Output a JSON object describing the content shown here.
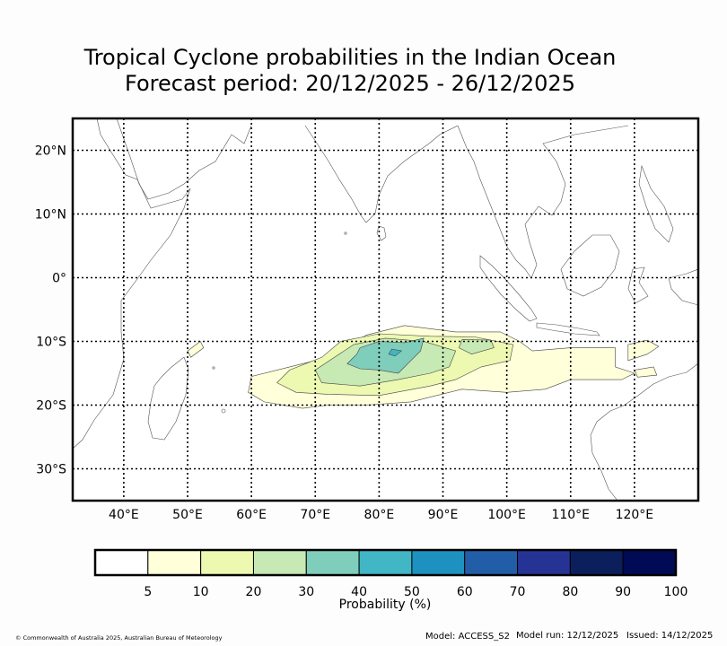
{
  "title": {
    "line1": "Tropical Cyclone probabilities in the Indian Ocean",
    "line2": "Forecast period: 20/12/2025 - 26/12/2025"
  },
  "map": {
    "lon_range": [
      32,
      130
    ],
    "lat_range": [
      -35,
      25
    ],
    "lat_ticks": [
      {
        "value": 20,
        "label": "20°N"
      },
      {
        "value": 10,
        "label": "10°N"
      },
      {
        "value": 0,
        "label": "0°"
      },
      {
        "value": -10,
        "label": "10°S"
      },
      {
        "value": -20,
        "label": "20°S"
      },
      {
        "value": -30,
        "label": "30°S"
      }
    ],
    "lon_ticks": [
      {
        "value": 40,
        "label": "40°E"
      },
      {
        "value": 50,
        "label": "50°E"
      },
      {
        "value": 60,
        "label": "60°E"
      },
      {
        "value": 70,
        "label": "70°E"
      },
      {
        "value": 80,
        "label": "80°E"
      },
      {
        "value": 90,
        "label": "90°E"
      },
      {
        "value": 100,
        "label": "100°E"
      },
      {
        "value": 110,
        "label": "110°E"
      },
      {
        "value": 120,
        "label": "120°E"
      }
    ],
    "probability_regions": [
      {
        "level": 5,
        "color": "#ffffd9",
        "points": [
          [
            78,
            -9
          ],
          [
            84,
            -7.5
          ],
          [
            92,
            -8.5
          ],
          [
            99,
            -8.5
          ],
          [
            102,
            -10
          ],
          [
            104,
            -11.5
          ],
          [
            110,
            -11
          ],
          [
            117,
            -11
          ],
          [
            117,
            -14
          ],
          [
            120,
            -15
          ],
          [
            118,
            -16
          ],
          [
            110,
            -16
          ],
          [
            106,
            -17.5
          ],
          [
            100,
            -18
          ],
          [
            93,
            -17.5
          ],
          [
            85,
            -19.5
          ],
          [
            78,
            -20
          ],
          [
            72,
            -20
          ],
          [
            68,
            -20.5
          ],
          [
            62,
            -19.5
          ],
          [
            59.5,
            -18
          ],
          [
            60,
            -15.5
          ],
          [
            66,
            -14
          ],
          [
            72,
            -12.5
          ]
        ]
      },
      {
        "level": 5,
        "color": "#ffffd9",
        "points": [
          [
            119,
            -10.5
          ],
          [
            122,
            -9.8
          ],
          [
            123.8,
            -10.8
          ],
          [
            122,
            -12
          ],
          [
            119,
            -13
          ]
        ]
      },
      {
        "level": 5,
        "color": "#ffffd9",
        "points": [
          [
            120,
            -14.5
          ],
          [
            123,
            -14
          ],
          [
            123.5,
            -15.3
          ],
          [
            120.5,
            -15.6
          ]
        ]
      },
      {
        "level": 5,
        "color": "#ffffd9",
        "points": [
          [
            50,
            -11.5
          ],
          [
            52,
            -10
          ],
          [
            52.5,
            -11
          ],
          [
            50.5,
            -12.5
          ]
        ]
      },
      {
        "level": 10,
        "color": "#edf8b1",
        "points": [
          [
            74,
            -10
          ],
          [
            80,
            -8.8
          ],
          [
            88,
            -9.2
          ],
          [
            95,
            -9.3
          ],
          [
            101,
            -10.5
          ],
          [
            100.5,
            -13
          ],
          [
            96,
            -14
          ],
          [
            92,
            -16
          ],
          [
            88,
            -17
          ],
          [
            80,
            -18.5
          ],
          [
            72,
            -18.3
          ],
          [
            67,
            -18
          ],
          [
            64,
            -16.5
          ],
          [
            66,
            -14.5
          ],
          [
            71,
            -12.5
          ]
        ]
      },
      {
        "level": 20,
        "color": "#c7e9b4",
        "points": [
          [
            76,
            -10.5
          ],
          [
            81,
            -9.5
          ],
          [
            87,
            -10
          ],
          [
            92,
            -11.5
          ],
          [
            91,
            -14
          ],
          [
            88,
            -15
          ],
          [
            83,
            -16
          ],
          [
            77,
            -17
          ],
          [
            71,
            -16.5
          ],
          [
            70,
            -14.5
          ],
          [
            73,
            -12.5
          ]
        ]
      },
      {
        "level": 20,
        "color": "#c7e9b4",
        "points": [
          [
            93,
            -9.7
          ],
          [
            97.5,
            -9.8
          ],
          [
            98,
            -11
          ],
          [
            94.5,
            -12
          ],
          [
            92.5,
            -11
          ]
        ]
      },
      {
        "level": 30,
        "color": "#7fcdbb",
        "points": [
          [
            77,
            -11
          ],
          [
            80,
            -10
          ],
          [
            84,
            -10.2
          ],
          [
            87,
            -9.5
          ],
          [
            86.5,
            -11.5
          ],
          [
            85,
            -13
          ],
          [
            83,
            -15
          ],
          [
            80,
            -14.5
          ],
          [
            77,
            -14.3
          ],
          [
            75,
            -13.5
          ],
          [
            76.5,
            -12
          ]
        ]
      },
      {
        "level": 40,
        "color": "#41b6c4",
        "points": [
          [
            82,
            -11.2
          ],
          [
            83.5,
            -11.5
          ],
          [
            82.5,
            -12.3
          ],
          [
            81.5,
            -12
          ]
        ]
      }
    ],
    "land_color": "#ffffff",
    "coastline_color": "#555555",
    "grid_color": "#000000"
  },
  "colorbar": {
    "colors": [
      "#ffffff",
      "#ffffd9",
      "#edf8b1",
      "#c7e9b4",
      "#7fcdbb",
      "#41b6c4",
      "#1d91c0",
      "#225ea8",
      "#253494",
      "#0a1f5c",
      "#000a55"
    ],
    "ticks": [
      "5",
      "10",
      "20",
      "30",
      "40",
      "50",
      "60",
      "70",
      "80",
      "90",
      "100"
    ],
    "label": "Probability (%)"
  },
  "footer": {
    "copyright": "© Commonwealth of Australia 2025, Australian Bureau of Meteorology",
    "model": "Model: ACCESS_S2",
    "model_run": "Model run: 12/12/2025",
    "issued": "Issued: 14/12/2025"
  }
}
